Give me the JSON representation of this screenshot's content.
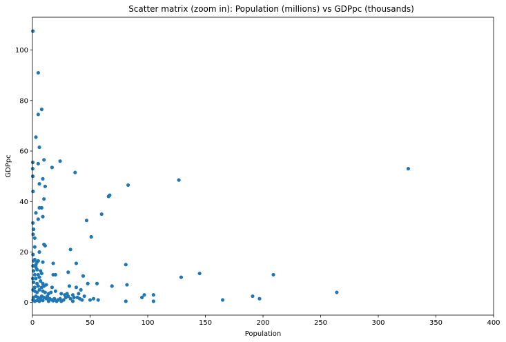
{
  "chart_data": {
    "type": "scatter",
    "title": "Scatter matrix (zoom in): Population (millions) vs GDPpc (thousands)",
    "xlabel": "Population",
    "ylabel": "GDPpc",
    "xlim": [
      0,
      400
    ],
    "ylim": [
      -5,
      113
    ],
    "xticks": [
      0,
      50,
      100,
      150,
      200,
      250,
      300,
      350,
      400
    ],
    "yticks": [
      0,
      20,
      40,
      60,
      80,
      100
    ],
    "grid": false,
    "color": "#1f77b4",
    "points": [
      [
        0.4,
        107.5
      ],
      [
        5,
        91
      ],
      [
        8,
        76.5
      ],
      [
        5,
        74.5
      ],
      [
        3,
        65.5
      ],
      [
        6,
        61.5
      ],
      [
        0.3,
        55.5
      ],
      [
        5,
        55
      ],
      [
        10,
        56.5
      ],
      [
        24,
        56
      ],
      [
        37,
        51.5
      ],
      [
        17,
        53.5
      ],
      [
        0.2,
        53
      ],
      [
        0.3,
        50
      ],
      [
        9,
        49
      ],
      [
        6,
        47
      ],
      [
        11,
        46
      ],
      [
        83,
        46.5
      ],
      [
        127,
        48.5
      ],
      [
        326,
        53
      ],
      [
        0.5,
        44
      ],
      [
        67,
        42.5
      ],
      [
        66,
        42
      ],
      [
        10,
        41
      ],
      [
        6,
        37.5
      ],
      [
        8,
        37.5
      ],
      [
        3,
        35.5
      ],
      [
        9,
        34
      ],
      [
        60,
        35
      ],
      [
        47,
        32.5
      ],
      [
        5,
        33
      ],
      [
        0.4,
        31.5
      ],
      [
        1,
        29
      ],
      [
        0.6,
        27
      ],
      [
        2,
        25.5
      ],
      [
        51,
        26
      ],
      [
        10,
        23
      ],
      [
        11,
        22.5
      ],
      [
        2,
        22
      ],
      [
        33,
        21
      ],
      [
        6,
        20
      ],
      [
        0.5,
        19
      ],
      [
        2,
        17
      ],
      [
        4,
        16
      ],
      [
        3,
        15
      ],
      [
        1,
        16.5
      ],
      [
        5,
        16.5
      ],
      [
        9,
        16
      ],
      [
        18,
        15.5
      ],
      [
        38,
        15.5
      ],
      [
        81,
        15
      ],
      [
        0.5,
        14.5
      ],
      [
        3,
        14
      ],
      [
        1,
        12.5
      ],
      [
        4,
        13
      ],
      [
        7,
        12.5
      ],
      [
        2,
        11
      ],
      [
        5,
        11
      ],
      [
        8,
        11.5
      ],
      [
        18,
        11
      ],
      [
        20,
        11
      ],
      [
        31,
        12
      ],
      [
        44,
        10.5
      ],
      [
        129,
        10
      ],
      [
        145,
        11.5
      ],
      [
        209,
        11
      ],
      [
        0.3,
        9.5
      ],
      [
        3,
        9.5
      ],
      [
        6,
        10
      ],
      [
        1,
        8
      ],
      [
        4,
        7.5
      ],
      [
        7,
        8.5
      ],
      [
        9,
        7.5
      ],
      [
        12,
        7
      ],
      [
        2,
        6
      ],
      [
        5,
        6.5
      ],
      [
        8,
        6
      ],
      [
        10,
        6.5
      ],
      [
        17,
        6
      ],
      [
        32,
        6.5
      ],
      [
        38,
        6
      ],
      [
        42,
        5
      ],
      [
        48,
        7.5
      ],
      [
        56,
        7.5
      ],
      [
        69,
        6.5
      ],
      [
        82,
        7
      ],
      [
        0.5,
        5
      ],
      [
        2,
        4.5
      ],
      [
        4,
        4
      ],
      [
        6,
        5
      ],
      [
        9,
        4.5
      ],
      [
        11,
        4
      ],
      [
        14,
        3.5
      ],
      [
        16,
        4
      ],
      [
        20,
        4.5
      ],
      [
        25,
        3.5
      ],
      [
        28,
        3
      ],
      [
        30,
        3.5
      ],
      [
        35,
        3
      ],
      [
        40,
        3.5
      ],
      [
        45,
        2.5
      ],
      [
        97,
        3
      ],
      [
        105,
        3
      ],
      [
        264,
        4
      ],
      [
        1,
        2
      ],
      [
        3,
        2.5
      ],
      [
        5,
        2
      ],
      [
        7,
        1.5
      ],
      [
        8,
        2.5
      ],
      [
        10,
        2
      ],
      [
        12,
        1.5
      ],
      [
        13,
        2.5
      ],
      [
        15,
        1.5
      ],
      [
        17,
        1
      ],
      [
        19,
        1.5
      ],
      [
        22,
        1
      ],
      [
        24,
        1.5
      ],
      [
        27,
        1
      ],
      [
        29,
        2
      ],
      [
        31,
        2.5
      ],
      [
        33,
        1.5
      ],
      [
        36,
        2
      ],
      [
        39,
        2
      ],
      [
        41,
        1.5
      ],
      [
        43,
        1
      ],
      [
        50,
        1
      ],
      [
        53,
        1.5
      ],
      [
        57,
        1
      ],
      [
        95,
        2
      ],
      [
        191,
        2.5
      ],
      [
        197,
        1.5
      ],
      [
        0.5,
        1
      ],
      [
        2,
        0.5
      ],
      [
        4,
        0.8
      ],
      [
        6,
        0.5
      ],
      [
        9,
        0.8
      ],
      [
        14,
        0.5
      ],
      [
        18,
        0.7
      ],
      [
        21,
        0.5
      ],
      [
        25,
        0.5
      ],
      [
        35,
        0.5
      ],
      [
        81,
        0.5
      ],
      [
        105,
        0.5
      ],
      [
        165,
        1
      ]
    ]
  }
}
